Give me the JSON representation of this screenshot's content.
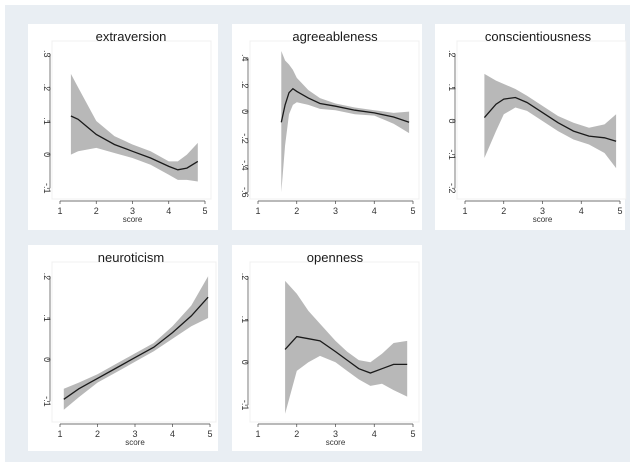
{
  "colors": {
    "outer_background": "#e9eef3",
    "panel_background": "#ffffff",
    "band": "#b8b8b8",
    "line": "#1a1a1a"
  },
  "chart_data": [
    {
      "type": "line",
      "title": "extraversion",
      "xlabel": "score",
      "ylabel": "",
      "xlim": [
        1,
        5
      ],
      "ylim": [
        -0.12,
        0.32
      ],
      "xticks": [
        1,
        2,
        3,
        4,
        5
      ],
      "yticks": [
        -0.1,
        0,
        0.1,
        0.2,
        0.3
      ],
      "ytick_labels": [
        "-.1",
        "0",
        ".1",
        ".2",
        ".3"
      ],
      "grid": false,
      "x": [
        1.3,
        1.5,
        2.0,
        2.5,
        3.0,
        3.5,
        4.0,
        4.25,
        4.5,
        4.8
      ],
      "y": [
        0.115,
        0.105,
        0.06,
        0.03,
        0.01,
        -0.01,
        -0.035,
        -0.045,
        -0.04,
        -0.02
      ],
      "upper": [
        0.24,
        0.2,
        0.1,
        0.055,
        0.03,
        0.01,
        -0.02,
        -0.02,
        0.0,
        0.035
      ],
      "lower": [
        0.0,
        0.01,
        0.02,
        0.005,
        -0.01,
        -0.03,
        -0.06,
        -0.075,
        -0.075,
        -0.08
      ]
    },
    {
      "type": "line",
      "title": "agreeableness",
      "xlabel": "",
      "ylabel": "",
      "xlim": [
        1,
        5
      ],
      "ylim": [
        -0.62,
        0.48
      ],
      "xticks": [
        1,
        2,
        3,
        4,
        5
      ],
      "yticks": [
        -0.6,
        -0.4,
        -0.2,
        0,
        0.2,
        0.4
      ],
      "ytick_labels": [
        "-.6",
        "-.4",
        "-.2",
        "0",
        ".2",
        ".4"
      ],
      "grid": false,
      "x": [
        1.6,
        1.7,
        1.8,
        1.9,
        2.0,
        2.3,
        2.6,
        3.0,
        3.5,
        4.0,
        4.5,
        4.9
      ],
      "y": [
        -0.08,
        0.05,
        0.14,
        0.17,
        0.15,
        0.1,
        0.06,
        0.04,
        0.01,
        -0.01,
        -0.04,
        -0.08
      ],
      "upper": [
        0.45,
        0.38,
        0.35,
        0.31,
        0.25,
        0.16,
        0.1,
        0.06,
        0.03,
        0.01,
        -0.01,
        0.0
      ],
      "lower": [
        -0.6,
        -0.25,
        -0.02,
        0.05,
        0.07,
        0.05,
        0.02,
        0.01,
        -0.02,
        -0.03,
        -0.09,
        -0.16
      ]
    },
    {
      "type": "line",
      "title": "conscientiousness",
      "xlabel": "score",
      "ylabel": "",
      "xlim": [
        1,
        5
      ],
      "ylim": [
        -0.22,
        0.22
      ],
      "xticks": [
        1,
        2,
        3,
        4,
        5
      ],
      "yticks": [
        -0.2,
        -0.1,
        0,
        0.1,
        0.2
      ],
      "ytick_labels": [
        "-.2",
        "-.1",
        "0",
        ".1",
        ".2"
      ],
      "grid": false,
      "x": [
        1.5,
        1.8,
        2.0,
        2.3,
        2.6,
        3.0,
        3.4,
        3.8,
        4.2,
        4.6,
        4.9
      ],
      "y": [
        0.01,
        0.05,
        0.065,
        0.07,
        0.055,
        0.025,
        -0.005,
        -0.03,
        -0.045,
        -0.05,
        -0.06
      ],
      "upper": [
        0.14,
        0.12,
        0.11,
        0.095,
        0.075,
        0.045,
        0.015,
        -0.005,
        -0.02,
        -0.01,
        0.02
      ],
      "lower": [
        -0.11,
        -0.03,
        0.02,
        0.04,
        0.03,
        0.0,
        -0.03,
        -0.055,
        -0.07,
        -0.095,
        -0.14
      ]
    },
    {
      "type": "line",
      "title": "neuroticism",
      "xlabel": "score",
      "ylabel": "",
      "xlim": [
        1,
        5
      ],
      "ylim": [
        -0.14,
        0.22
      ],
      "xticks": [
        1,
        2,
        3,
        4,
        5
      ],
      "yticks": [
        -0.1,
        0,
        0.1,
        0.2
      ],
      "ytick_labels": [
        "-.1",
        "0",
        ".1",
        ".2"
      ],
      "grid": false,
      "x": [
        1.1,
        1.5,
        2.0,
        2.5,
        3.0,
        3.5,
        4.0,
        4.5,
        4.95
      ],
      "y": [
        -0.095,
        -0.07,
        -0.045,
        -0.02,
        0.005,
        0.03,
        0.065,
        0.105,
        0.15
      ],
      "upper": [
        -0.07,
        -0.055,
        -0.035,
        -0.01,
        0.015,
        0.04,
        0.08,
        0.13,
        0.2
      ],
      "lower": [
        -0.12,
        -0.09,
        -0.055,
        -0.03,
        -0.005,
        0.02,
        0.05,
        0.08,
        0.1
      ]
    },
    {
      "type": "line",
      "title": "openness",
      "xlabel": "score",
      "ylabel": "",
      "xlim": [
        1,
        5
      ],
      "ylim": [
        -0.13,
        0.22
      ],
      "xticks": [
        1,
        2,
        3,
        4,
        5
      ],
      "yticks": [
        -0.1,
        0,
        0.1,
        0.2
      ],
      "ytick_labels": [
        "-.1",
        "0",
        ".1",
        ".2"
      ],
      "grid": false,
      "x": [
        1.7,
        2.0,
        2.3,
        2.6,
        3.0,
        3.3,
        3.6,
        3.9,
        4.2,
        4.5,
        4.85
      ],
      "y": [
        0.03,
        0.06,
        0.055,
        0.05,
        0.025,
        0.005,
        -0.015,
        -0.025,
        -0.015,
        -0.005,
        -0.005
      ],
      "upper": [
        0.19,
        0.16,
        0.12,
        0.09,
        0.05,
        0.025,
        0.005,
        0.0,
        0.02,
        0.045,
        0.05
      ],
      "lower": [
        -0.12,
        -0.02,
        0.0,
        0.015,
        0.0,
        -0.02,
        -0.04,
        -0.055,
        -0.05,
        -0.065,
        -0.08
      ]
    }
  ]
}
